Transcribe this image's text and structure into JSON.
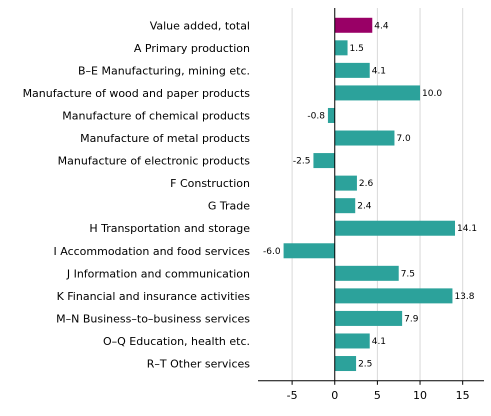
{
  "chart_data": {
    "type": "bar",
    "orientation": "horizontal",
    "categories": [
      "Value added, total",
      "A Primary production",
      "B–E Manufacturing, mining etc.",
      "Manufacture of wood and paper products",
      "Manufacture of chemical products",
      "Manufacture of metal products",
      "Manufacture of electronic products",
      "F Construction",
      "G Trade",
      "H Transportation and storage",
      "I Accommodation and food services",
      "J Information and communication",
      "K Financial and insurance activities",
      "M–N Business–to–business services",
      "O–Q Education, health etc.",
      "R–T Other services"
    ],
    "values": [
      4.4,
      1.5,
      4.1,
      10.0,
      -0.8,
      7.0,
      -2.5,
      2.6,
      2.4,
      14.1,
      -6.0,
      7.5,
      13.8,
      7.9,
      4.1,
      2.5
    ],
    "value_labels": [
      "4.4",
      "1.5",
      "4.1",
      "10.0",
      "-0.8",
      "7.0",
      "-2.5",
      "2.6",
      "2.4",
      "14.1",
      "-6.0",
      "7.5",
      "13.8",
      "7.9",
      "4.1",
      "2.5"
    ],
    "xlim": [
      -9,
      17.5
    ],
    "xticks": [
      -5,
      0,
      5,
      10,
      15
    ],
    "xtick_labels": [
      "-5",
      "0",
      "5",
      "10",
      "15"
    ],
    "grid": "vertical",
    "legend": "none",
    "colors": {
      "highlight": "#990066",
      "default": "#2ca29b",
      "grid": "#d9d9d9"
    },
    "highlight_index": 0,
    "title": "",
    "xlabel": "",
    "ylabel": ""
  }
}
